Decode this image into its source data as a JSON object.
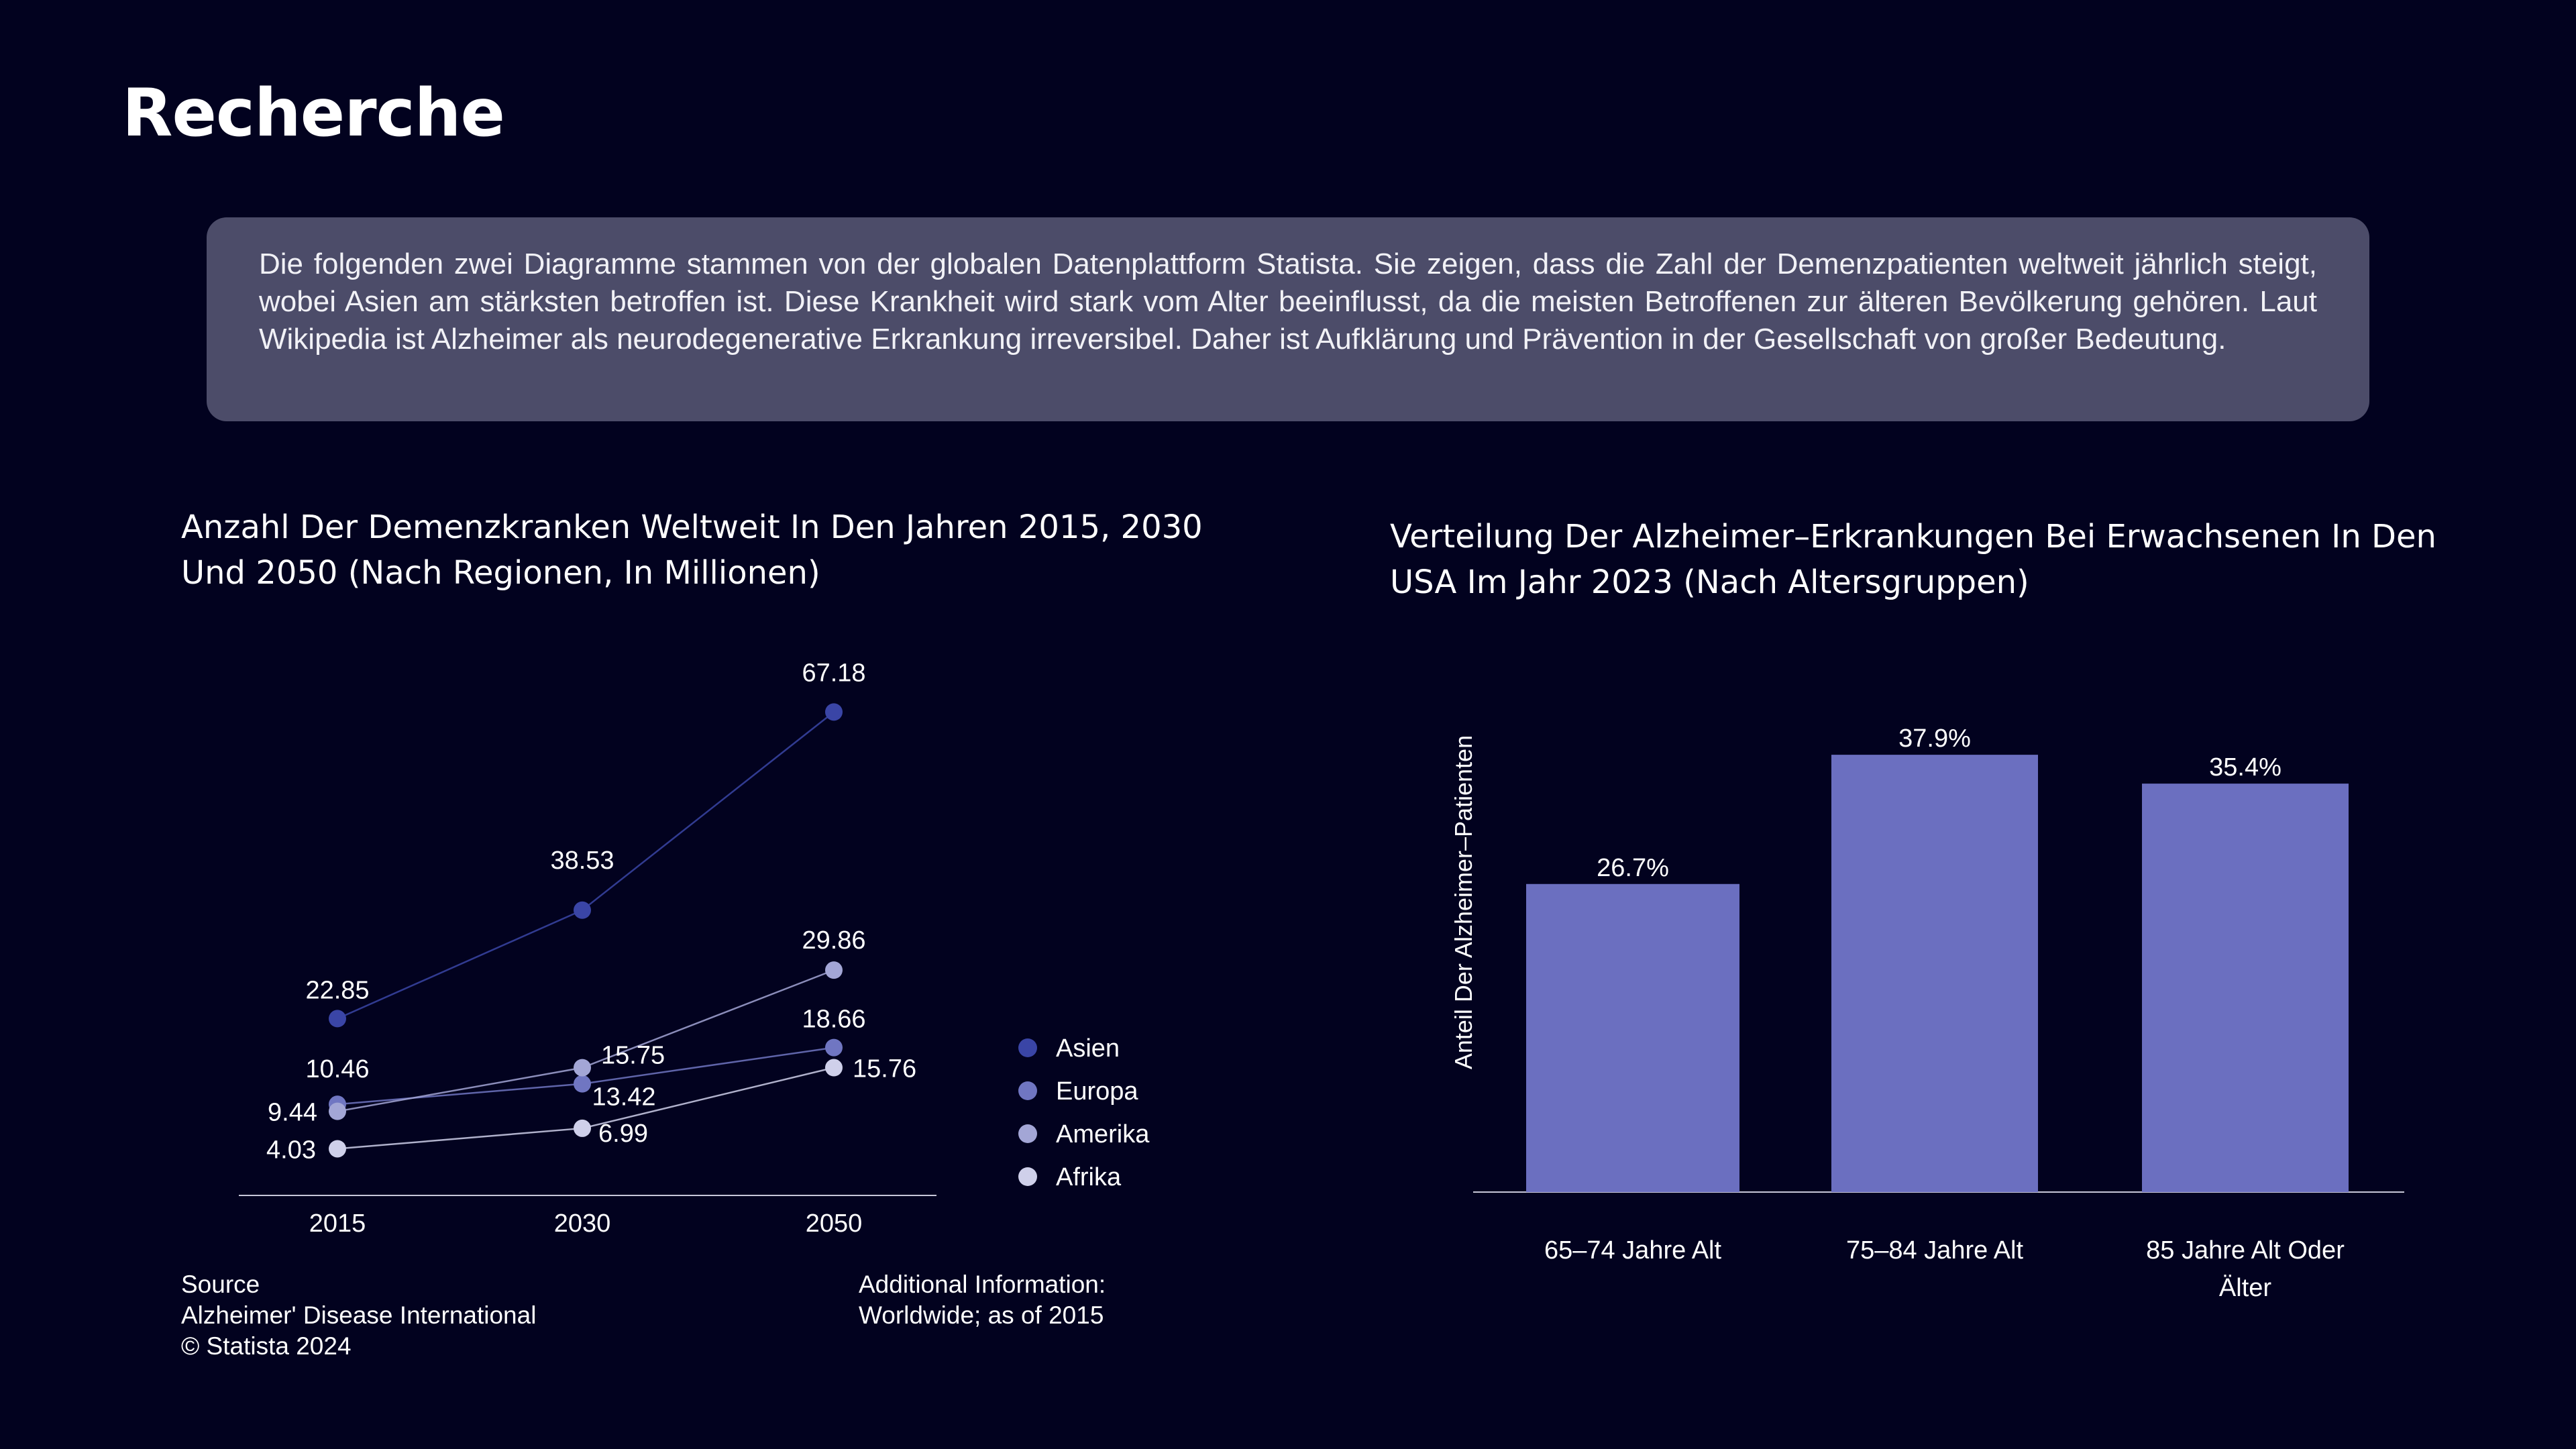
{
  "page": {
    "title": "Recherche"
  },
  "intro": {
    "text": "Die folgenden zwei Diagramme stammen von der globalen Datenplattform Statista. Sie zeigen, dass die Zahl der Demenzpatienten weltweit jährlich steigt, wobei Asien am stärksten betroffen ist. Diese Krankheit wird stark vom Alter beeinflusst, da die meisten Betroffenen zur älteren Bevölkerung gehören. Laut Wikipedia ist Alzheimer als neurodegenerative Erkrankung irreversibel. Daher ist Aufklärung und Prävention in der Gesellschaft von großer Bedeutung."
  },
  "chart_data": [
    {
      "type": "line",
      "title": "Anzahl Der Demenzkranken Weltweit In Den Jahren 2015, 2030 Und 2050 (Nach Regionen, In Millionen)",
      "x": [
        "2015",
        "2030",
        "2050"
      ],
      "series": [
        {
          "name": "Asien",
          "values": [
            22.85,
            38.53,
            67.18
          ],
          "color": "#3a45a6"
        },
        {
          "name": "Europa",
          "values": [
            10.46,
            13.42,
            18.66
          ],
          "color": "#7076c2"
        },
        {
          "name": "Amerika",
          "values": [
            9.44,
            15.75,
            29.86
          ],
          "color": "#a3a6d6"
        },
        {
          "name": "Afrika",
          "values": [
            4.03,
            6.99,
            15.76
          ],
          "color": "#cfd0ea"
        }
      ],
      "ylim": [
        0,
        80
      ],
      "legend": "right",
      "grid": false,
      "source": {
        "heading": "Source",
        "line1": "Alzheimer' Disease International",
        "line2": "© Statista 2024"
      },
      "additional_info": {
        "heading": "Additional Information:",
        "line1": "Worldwide; as of 2015"
      }
    },
    {
      "type": "bar",
      "title": "Verteilung Der Alzheimer–Erkrankungen Bei Erwachsenen In Den USA Im Jahr 2023 (Nach Altersgruppen)",
      "categories": [
        "65–74 Jahre Alt",
        "75–84 Jahre Alt",
        "85 Jahre Alt Oder Älter"
      ],
      "values": [
        26.7,
        37.9,
        35.4
      ],
      "value_labels": [
        "26.7%",
        "37.9%",
        "35.4%"
      ],
      "ylabel": "Anteil Der Alzheimer–Patienten",
      "ylim": [
        0,
        40
      ],
      "color": "#6b6fc0",
      "grid": false
    }
  ]
}
